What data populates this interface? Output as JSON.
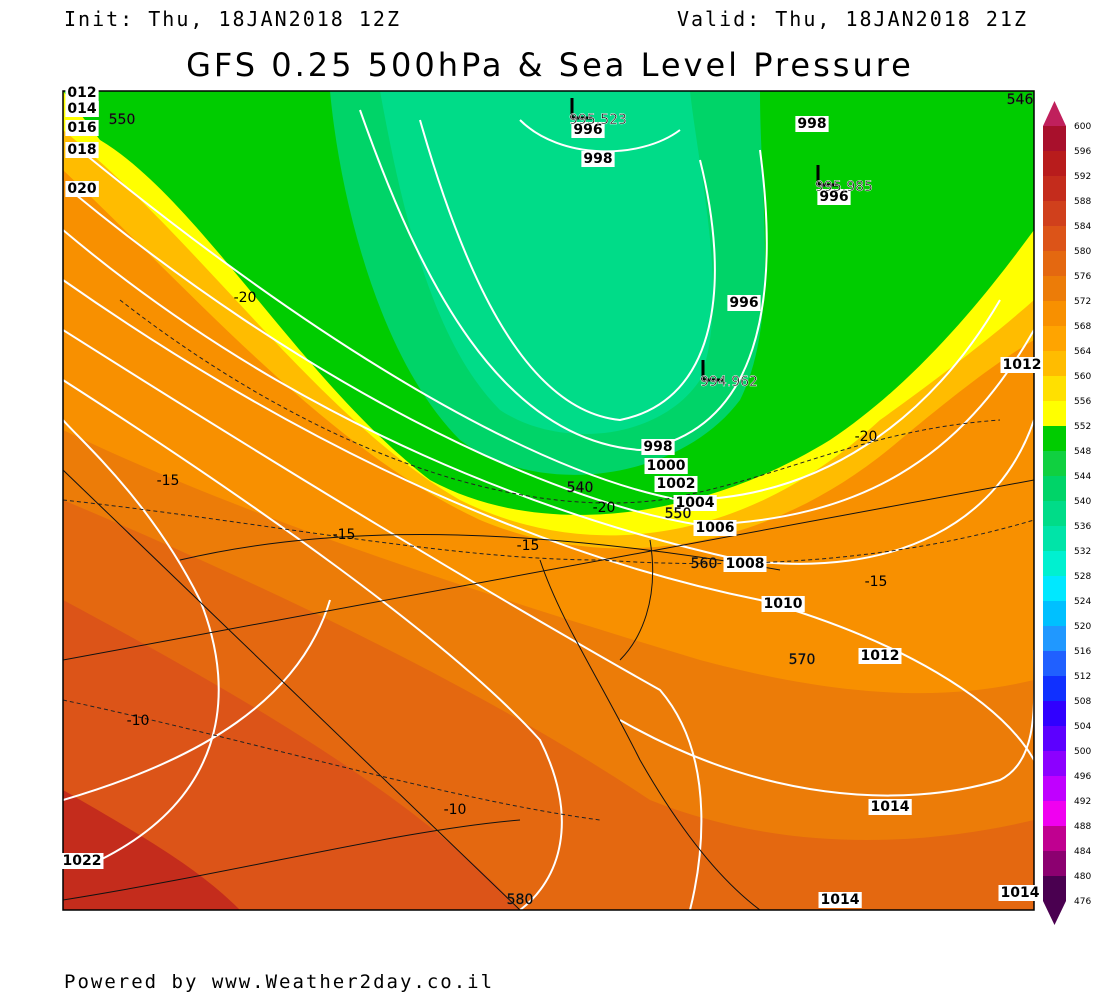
{
  "header": {
    "init": "Init: Thu, 18JAN2018 12Z",
    "valid": "Valid: Thu, 18JAN2018 21Z",
    "title": "GFS 0.25 500hPa & Sea Level Pressure"
  },
  "map": {
    "lows": [
      {
        "symbol": "L",
        "pressure": "996",
        "value": "995.523"
      },
      {
        "symbol": "L",
        "pressure": "996",
        "value": "995.985"
      },
      {
        "symbol": "L",
        "value": "994.962"
      }
    ],
    "pressure_labels": [
      "998",
      "998",
      "996",
      "998",
      "1000",
      "1002",
      "1004",
      "1006",
      "1008",
      "1010",
      "1012",
      "1014",
      "1014",
      "1022",
      "020",
      "018",
      "016",
      "014",
      "012",
      "1012",
      "1014"
    ],
    "thickness_labels": [
      "550",
      "540",
      "550",
      "560",
      "570",
      "580",
      "546"
    ],
    "temperature_labels": [
      "-20",
      "-20",
      "-20",
      "-15",
      "-15",
      "-15",
      "-15",
      "-10",
      "-10"
    ]
  },
  "colorbar": {
    "levels": [
      {
        "value": 600,
        "color": "#c0205c"
      },
      {
        "value": 596,
        "color": "#a8102c"
      },
      {
        "value": 592,
        "color": "#b81c1c"
      },
      {
        "value": 588,
        "color": "#c42c1c"
      },
      {
        "value": 584,
        "color": "#d0401c"
      },
      {
        "value": 580,
        "color": "#dc5418"
      },
      {
        "value": 576,
        "color": "#e46810"
      },
      {
        "value": 572,
        "color": "#ec7c08"
      },
      {
        "value": 568,
        "color": "#f89000"
      },
      {
        "value": 564,
        "color": "#ffa400"
      },
      {
        "value": 560,
        "color": "#ffbc00"
      },
      {
        "value": 556,
        "color": "#ffe000"
      },
      {
        "value": 552,
        "color": "#ffff00"
      },
      {
        "value": 548,
        "color": "#00cc00"
      },
      {
        "value": 544,
        "color": "#10d040"
      },
      {
        "value": 540,
        "color": "#00d468"
      },
      {
        "value": 536,
        "color": "#00dc88"
      },
      {
        "value": 532,
        "color": "#00e4a8"
      },
      {
        "value": 528,
        "color": "#00f0d0"
      },
      {
        "value": 524,
        "color": "#00e8ff"
      },
      {
        "value": 520,
        "color": "#00c0ff"
      },
      {
        "value": 516,
        "color": "#2098ff"
      },
      {
        "value": 512,
        "color": "#2060ff"
      },
      {
        "value": 508,
        "color": "#1030ff"
      },
      {
        "value": 504,
        "color": "#3000ff"
      },
      {
        "value": 500,
        "color": "#5c00ff"
      },
      {
        "value": 496,
        "color": "#8c00ff"
      },
      {
        "value": 492,
        "color": "#c000ff"
      },
      {
        "value": 488,
        "color": "#f000f0"
      },
      {
        "value": 484,
        "color": "#c00090"
      },
      {
        "value": 480,
        "color": "#8c0070"
      },
      {
        "value": 476,
        "color": "#4a0050"
      }
    ]
  },
  "footer": "Powered by www.Weather2day.co.il"
}
